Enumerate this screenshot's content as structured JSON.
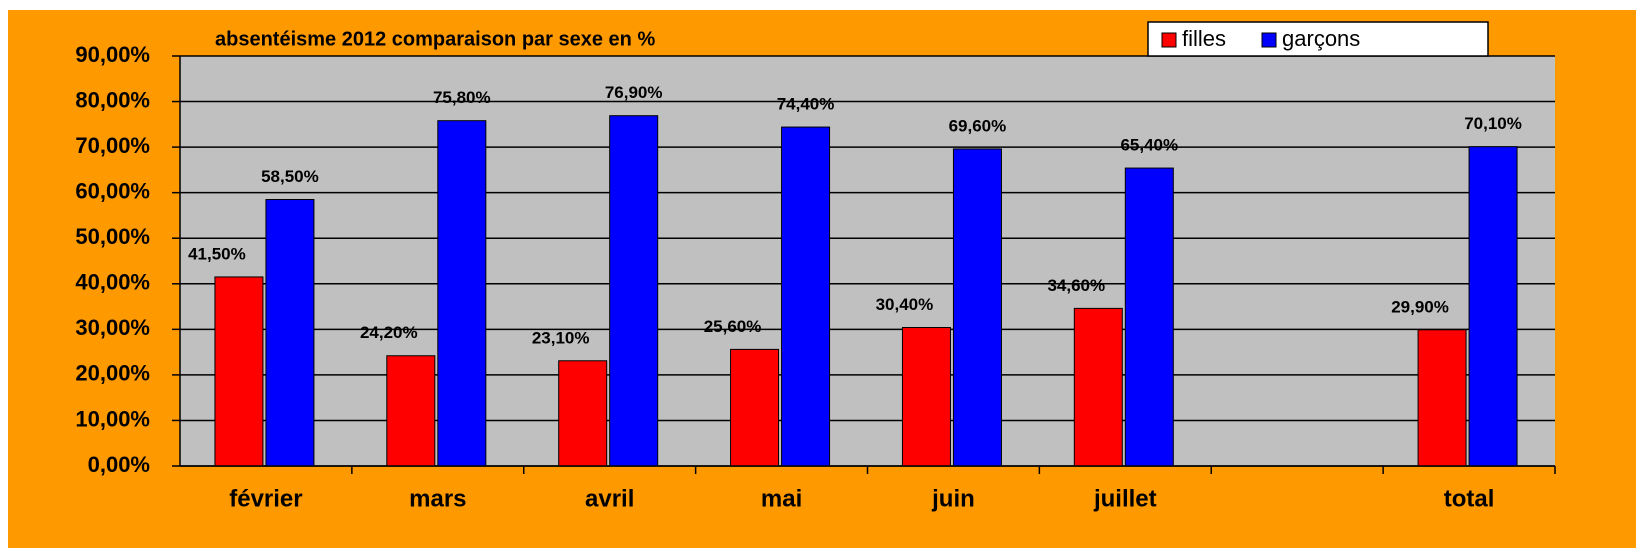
{
  "chart_data": {
    "type": "bar",
    "title": "absentéisme 2012 comparaison par sexe en %",
    "categories": [
      "février",
      "mars",
      "avril",
      "mai",
      "juin",
      "juillet",
      null,
      "total"
    ],
    "series": [
      {
        "name": "filles",
        "color": "#ff0000",
        "values": [
          41.5,
          24.2,
          23.1,
          25.6,
          30.4,
          34.6,
          null,
          29.9
        ],
        "value_labels": [
          "41,50%",
          "24,20%",
          "23,10%",
          "25,60%",
          "30,40%",
          "34,60%",
          null,
          "29,90%"
        ]
      },
      {
        "name": "garçons",
        "color": "#0000ff",
        "values": [
          58.5,
          75.8,
          76.9,
          74.4,
          69.6,
          65.4,
          null,
          70.1
        ],
        "value_labels": [
          "58,50%",
          "75,80%",
          "76,90%",
          "74,40%",
          "69,60%",
          "65,40%",
          null,
          "70,10%"
        ]
      }
    ],
    "ylim": [
      0,
      90
    ],
    "yticks": [
      {
        "value": 0,
        "label": "0,00%"
      },
      {
        "value": 10,
        "label": "10,00%"
      },
      {
        "value": 20,
        "label": "20,00%"
      },
      {
        "value": 30,
        "label": "30,00%"
      },
      {
        "value": 40,
        "label": "40,00%"
      },
      {
        "value": 50,
        "label": "50,00%"
      },
      {
        "value": 60,
        "label": "60,00%"
      },
      {
        "value": 70,
        "label": "70,00%"
      },
      {
        "value": 80,
        "label": "80,00%"
      },
      {
        "value": 90,
        "label": "90,00%"
      }
    ],
    "grid": true,
    "legend": "top-right"
  }
}
